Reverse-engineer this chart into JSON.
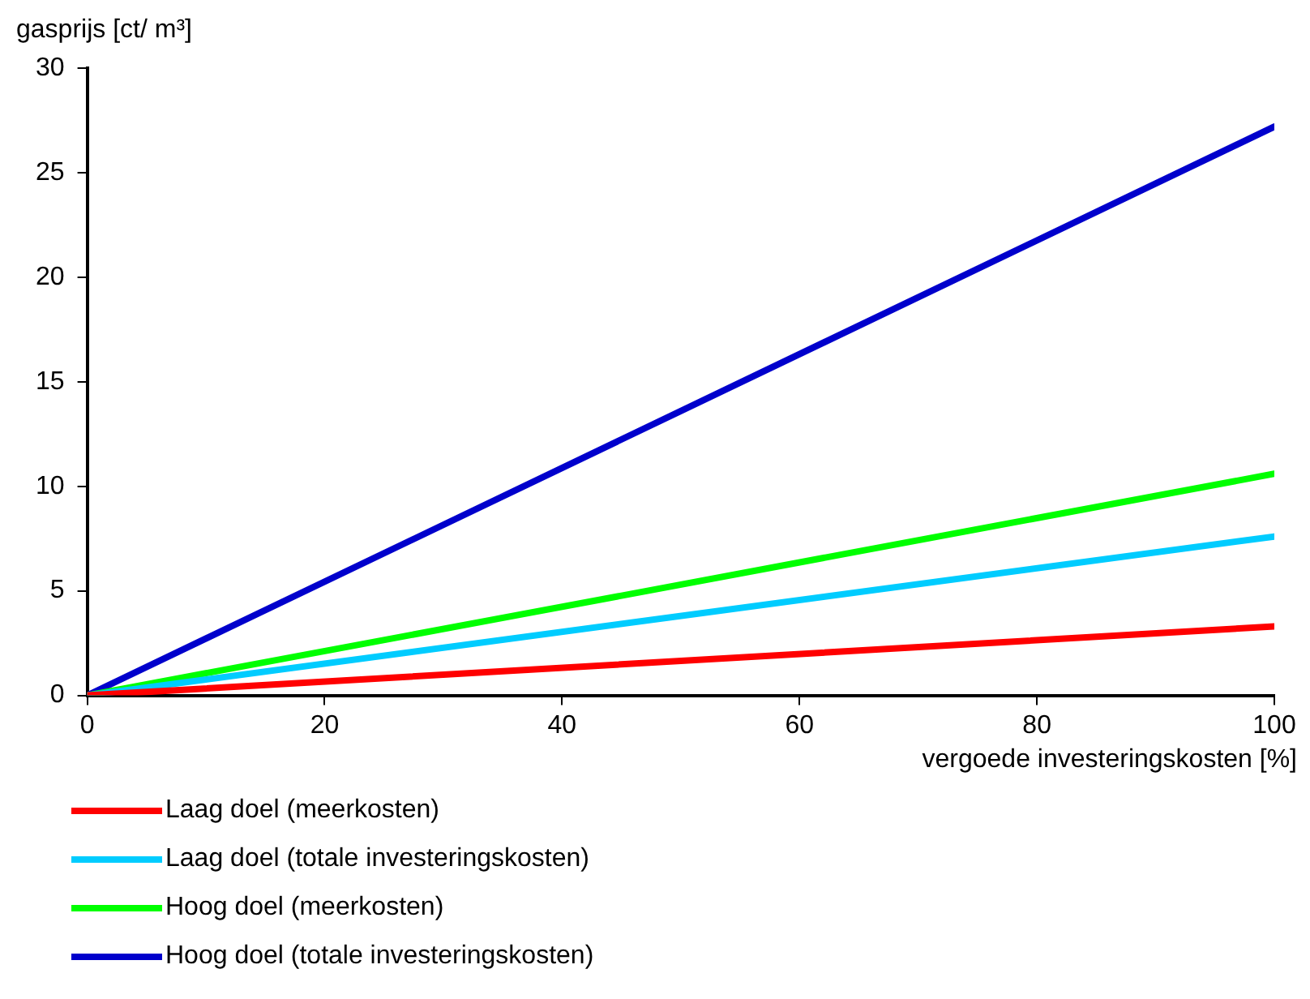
{
  "chart_data": {
    "type": "line",
    "ylabel": "gasprijs [ct/ m³]",
    "xlabel": "vergoede  investeringskosten [%]",
    "x": [
      0,
      100
    ],
    "series": [
      {
        "name": "Laag doel (meerkosten)",
        "color": "#ff0000",
        "values": [
          0,
          3.3
        ]
      },
      {
        "name": "Laag doel (totale investeringskosten)",
        "color": "#00ccff",
        "values": [
          0,
          7.6
        ]
      },
      {
        "name": "Hoog doel (meerkosten)",
        "color": "#00ff00",
        "values": [
          0,
          10.6
        ]
      },
      {
        "name": "Hoog doel (totale investeringskosten)",
        "color": "#0000cc",
        "values": [
          0,
          27.2
        ]
      }
    ],
    "xlim": [
      0,
      100
    ],
    "xticks": [
      0,
      20,
      40,
      60,
      80,
      100
    ],
    "ylim": [
      0,
      30
    ],
    "yticks": [
      0,
      5,
      10,
      15,
      20,
      25,
      30
    ],
    "grid": false,
    "legend": "bottom left",
    "marker": "none",
    "line_style": "solid"
  }
}
